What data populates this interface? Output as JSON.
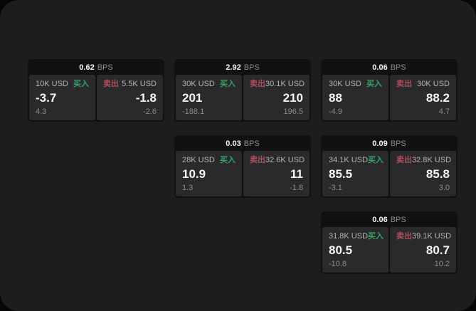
{
  "labels": {
    "bps_unit": "BPS",
    "buy": "买入",
    "sell": "卖出"
  },
  "colors": {
    "surface": "#1d1d1f",
    "card": "#111113",
    "panel": "#2a2a2c",
    "buy": "#35a065",
    "sell": "#b14b5d"
  },
  "cards": [
    {
      "row": 1,
      "col": 1,
      "bps": "0.62",
      "buy": {
        "notional": "10K USD",
        "price": "-3.7",
        "sub": "4.3"
      },
      "sell": {
        "notional": "5.5K USD",
        "price": "-1.8",
        "sub": "-2.6"
      }
    },
    {
      "row": 1,
      "col": 2,
      "bps": "2.92",
      "buy": {
        "notional": "30K USD",
        "price": "201",
        "sub": "-188.1"
      },
      "sell": {
        "notional": "30.1K USD",
        "price": "210",
        "sub": "196.5"
      }
    },
    {
      "row": 1,
      "col": 3,
      "bps": "0.06",
      "buy": {
        "notional": "30K USD",
        "price": "88",
        "sub": "-4.9"
      },
      "sell": {
        "notional": "30K USD",
        "price": "88.2",
        "sub": "4.7"
      }
    },
    {
      "row": 2,
      "col": 2,
      "bps": "0.03",
      "buy": {
        "notional": "28K USD",
        "price": "10.9",
        "sub": "1.3"
      },
      "sell": {
        "notional": "32.6K USD",
        "price": "11",
        "sub": "-1.8"
      }
    },
    {
      "row": 2,
      "col": 3,
      "bps": "0.09",
      "buy": {
        "notional": "34.1K USD",
        "price": "85.5",
        "sub": "-3.1"
      },
      "sell": {
        "notional": "32.8K USD",
        "price": "85.8",
        "sub": "3.0"
      }
    },
    {
      "row": 3,
      "col": 3,
      "bps": "0.06",
      "buy": {
        "notional": "31.8K USD",
        "price": "80.5",
        "sub": "-10.8"
      },
      "sell": {
        "notional": "39.1K USD",
        "price": "80.7",
        "sub": "10.2"
      }
    }
  ]
}
